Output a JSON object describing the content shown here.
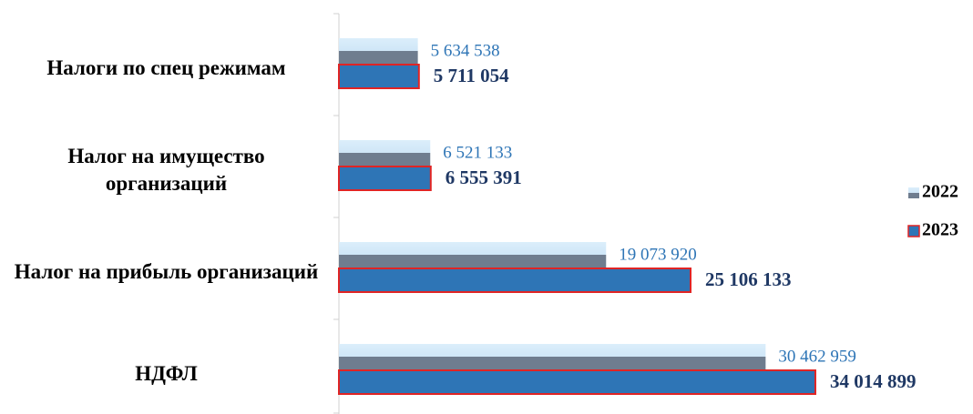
{
  "chart_data": {
    "type": "hbar",
    "categories": [
      "Налоги по спец режимам",
      "Налог на имущество организаций",
      "Налог на прибыль организаций",
      "НДФЛ"
    ],
    "series": [
      {
        "name": "2022",
        "color": "#6f7d8f",
        "values": [
          5634538,
          6521133,
          19073920,
          30462959
        ],
        "value_labels": [
          "5 634 538",
          "6 521 133",
          "19 073 920",
          "30 462 959"
        ]
      },
      {
        "name": "2023",
        "color": "#2e75b6",
        "values": [
          5711054,
          6555391,
          25106133,
          34014899
        ],
        "value_labels": [
          "5 711 054",
          "6 555 391",
          "25 106 133",
          "34 014 899"
        ]
      }
    ],
    "xlim": [
      0,
      40000000
    ],
    "legend": "right"
  }
}
